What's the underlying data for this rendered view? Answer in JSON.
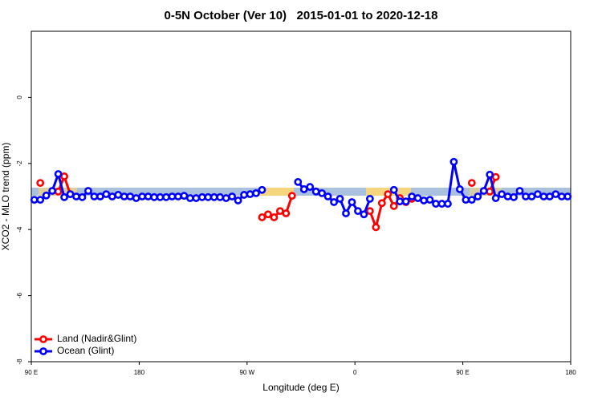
{
  "chart_data": {
    "type": "line",
    "title": "0-5N October (Ver 10)   2015-01-01 to 2020-12-18",
    "x_label": "Longitude (deg E)",
    "y_label": "XCO2 - MLO trend (ppm)",
    "xlim": [
      90,
      540
    ],
    "xticks": [
      {
        "value": 90,
        "label": "90 E"
      },
      180,
      {
        "value": 270,
        "label": "90 W"
      },
      {
        "value": 360,
        "label": "0"
      },
      {
        "value": 450,
        "label": "90 E"
      },
      {
        "value": 540,
        "label": "180"
      }
    ],
    "ylim": [
      -8,
      2
    ],
    "yticks": [
      -8,
      -6,
      -4,
      -2,
      0
    ],
    "legend": "bottom-left",
    "x": [
      92.5,
      97.5,
      102.5,
      107.5,
      112.5,
      117.5,
      122.5,
      127.5,
      132.5,
      137.5,
      142.5,
      147.5,
      152.5,
      157.5,
      162.5,
      167.5,
      172.5,
      177.5,
      182.5,
      187.5,
      192.5,
      197.5,
      202.5,
      207.5,
      212.5,
      217.5,
      222.5,
      227.5,
      232.5,
      237.5,
      242.5,
      247.5,
      252.5,
      257.5,
      262.5,
      267.5,
      272.5,
      277.5,
      282.5,
      287.5,
      292.5,
      297.5,
      302.5,
      307.5,
      312.5,
      317.5,
      322.5,
      327.5,
      332.5,
      337.5,
      342.5,
      347.5,
      352.5,
      357.5,
      362.5,
      367.5,
      372.5,
      377.5,
      382.5,
      387.5,
      392.5,
      397.5,
      402.5,
      407.5,
      412.5,
      417.5,
      422.5,
      427.5,
      432.5,
      437.5,
      442.5,
      447.5,
      452.5,
      457.5,
      462.5,
      467.5,
      472.5,
      477.5,
      482.5,
      487.5,
      492.5,
      497.5,
      502.5,
      507.5,
      512.5,
      517.5,
      522.5,
      527.5,
      532.5,
      537.5
    ],
    "series": [
      {
        "name": "Land (Nadir&Glint)",
        "color": "#ff0000",
        "values": [
          null,
          -2.59,
          null,
          null,
          -2.85,
          -2.39,
          -2.93,
          null,
          null,
          null,
          null,
          null,
          null,
          null,
          null,
          null,
          null,
          null,
          null,
          null,
          null,
          null,
          null,
          null,
          null,
          null,
          null,
          null,
          null,
          null,
          null,
          null,
          null,
          null,
          null,
          null,
          null,
          null,
          -3.63,
          -3.54,
          -3.63,
          -3.44,
          -3.51,
          -2.98,
          null,
          null,
          null,
          null,
          null,
          null,
          null,
          null,
          null,
          null,
          null,
          null,
          -3.44,
          -3.93,
          -3.2,
          -2.93,
          -3.29,
          -3.05,
          -3.17,
          -3.07,
          null,
          null,
          null,
          null,
          null,
          null,
          null,
          null,
          null,
          -2.59,
          null,
          null,
          -2.85,
          -2.41,
          null,
          null,
          null,
          null,
          null,
          null,
          null,
          null,
          null,
          null,
          null,
          null
        ]
      },
      {
        "name": "Ocean (Glint)",
        "color": "#0000ff",
        "values": [
          -3.1,
          -3.1,
          -2.97,
          -2.83,
          -2.32,
          -3.02,
          -2.93,
          -3.0,
          -3.02,
          -2.83,
          -3.0,
          -3.0,
          -2.93,
          -3.0,
          -2.95,
          -3.0,
          -3.0,
          -3.05,
          -3.0,
          -3.0,
          -3.02,
          -3.02,
          -3.02,
          -3.0,
          -3.0,
          -2.98,
          -3.05,
          -3.05,
          -3.02,
          -3.02,
          -3.02,
          -3.02,
          -3.05,
          -3.0,
          -3.12,
          -2.95,
          -2.93,
          -2.9,
          -2.8,
          null,
          null,
          null,
          null,
          null,
          -2.56,
          -2.78,
          -2.71,
          -2.85,
          -2.9,
          -3.0,
          -3.17,
          -3.07,
          -3.51,
          -3.17,
          -3.44,
          -3.54,
          -3.07,
          null,
          null,
          null,
          -2.8,
          -3.15,
          -3.15,
          -3.0,
          -3.05,
          -3.12,
          -3.1,
          -3.22,
          -3.22,
          -3.22,
          -1.95,
          -2.78,
          -3.1,
          -3.1,
          -3.0,
          -2.83,
          -2.34,
          -3.05,
          -2.93,
          -3.0,
          -3.02,
          -2.83,
          -3.0,
          -3.0,
          -2.93,
          -3.0,
          -3.0,
          -2.93,
          -3.0,
          -3.0
        ]
      }
    ]
  }
}
